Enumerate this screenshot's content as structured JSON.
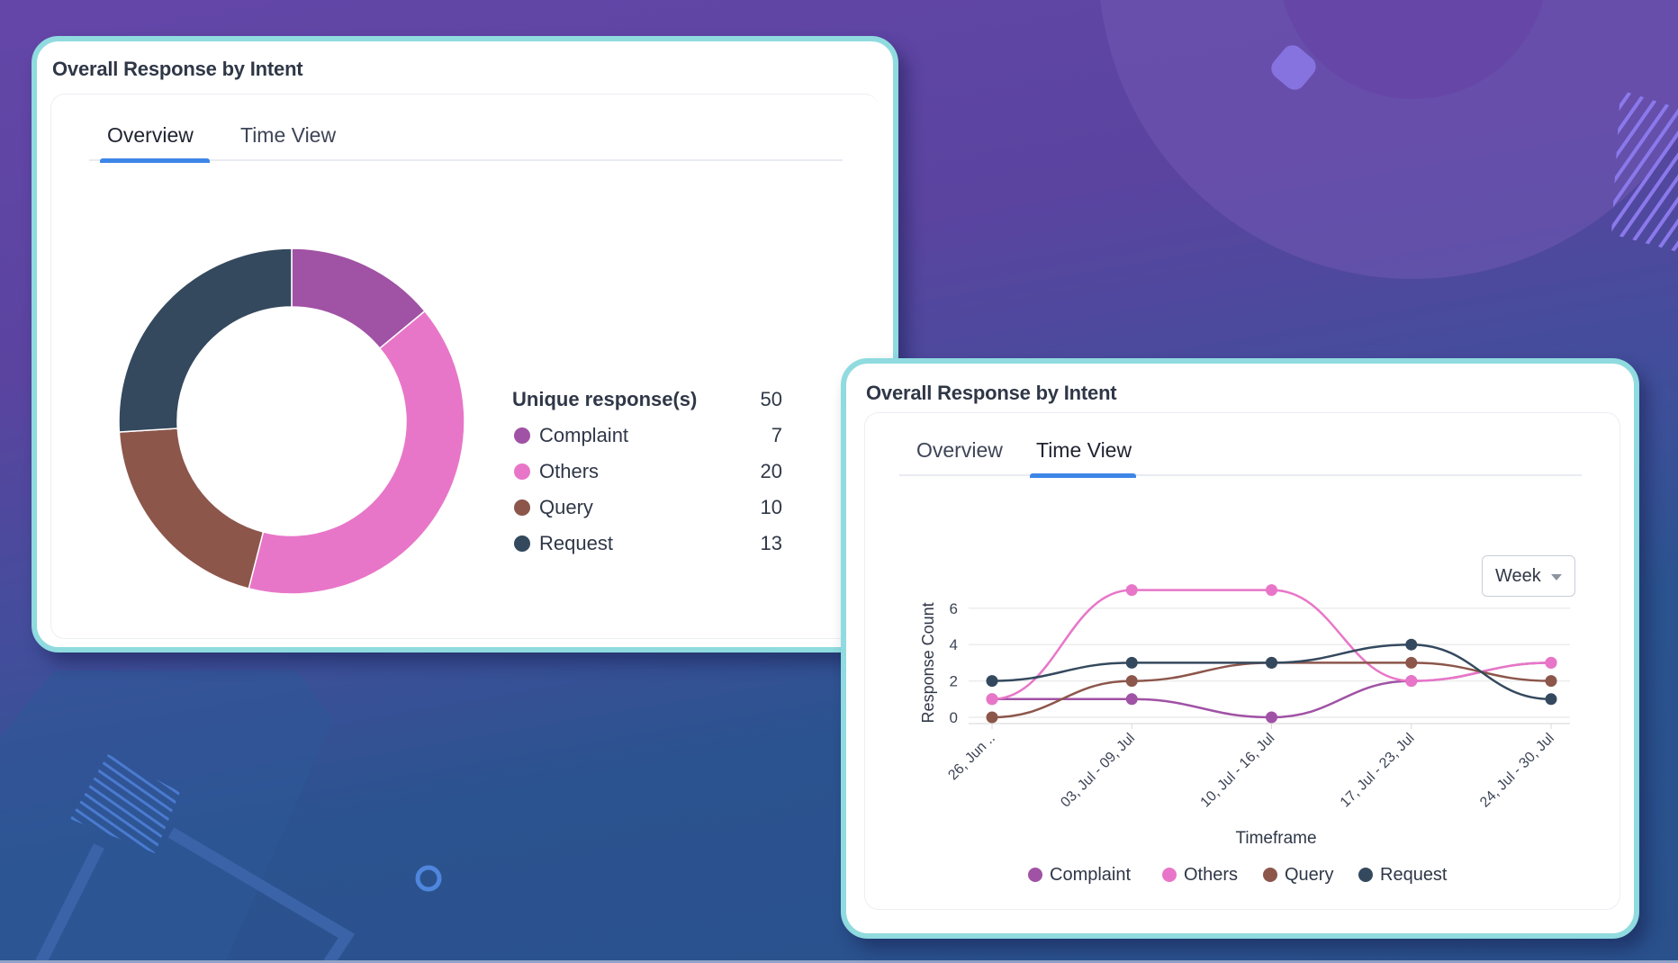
{
  "colors": {
    "Complaint": "#a052a5",
    "Others": "#e876c8",
    "Query": "#8c564b",
    "Request": "#34495e",
    "tab_accent": "#3d86e8",
    "card_border": "#8fdbdf"
  },
  "overview_card": {
    "title": "Overall Response by Intent",
    "tabs": [
      {
        "label": "Overview",
        "active": true
      },
      {
        "label": "Time View",
        "active": false
      }
    ],
    "summary": {
      "label": "Unique response(s)",
      "value": "50"
    },
    "legend": [
      {
        "label": "Complaint",
        "value": "7"
      },
      {
        "label": "Others",
        "value": "20"
      },
      {
        "label": "Query",
        "value": "10"
      },
      {
        "label": "Request",
        "value": "13"
      }
    ]
  },
  "timeview_card": {
    "title": "Overall Response by Intent",
    "tabs": [
      {
        "label": "Overview",
        "active": false
      },
      {
        "label": "Time View",
        "active": true
      }
    ],
    "period_select": {
      "value": "Week"
    }
  },
  "chart_data": [
    {
      "type": "pie",
      "variant": "donut",
      "categories": [
        "Complaint",
        "Others",
        "Query",
        "Request"
      ],
      "values": [
        7,
        20,
        10,
        13
      ],
      "total": 50
    },
    {
      "type": "line",
      "xlabel": "Timeframe",
      "ylabel": "Response Count",
      "categories": [
        "26, Jun ..",
        "03, Jul - 09, Jul",
        "10, Jul - 16, Jul",
        "17, Jul - 23, Jul",
        "24, Jul - 30, Jul"
      ],
      "yticks": [
        "0",
        "2",
        "4",
        "6"
      ],
      "ylim": [
        0,
        7
      ],
      "grid": true,
      "legend_position": "bottom",
      "series": [
        {
          "name": "Complaint",
          "values": [
            1,
            1,
            0,
            2,
            3
          ]
        },
        {
          "name": "Others",
          "values": [
            1,
            7,
            7,
            2,
            3
          ]
        },
        {
          "name": "Query",
          "values": [
            0,
            2,
            3,
            3,
            2
          ]
        },
        {
          "name": "Request",
          "values": [
            2,
            3,
            3,
            4,
            1
          ]
        }
      ]
    }
  ]
}
